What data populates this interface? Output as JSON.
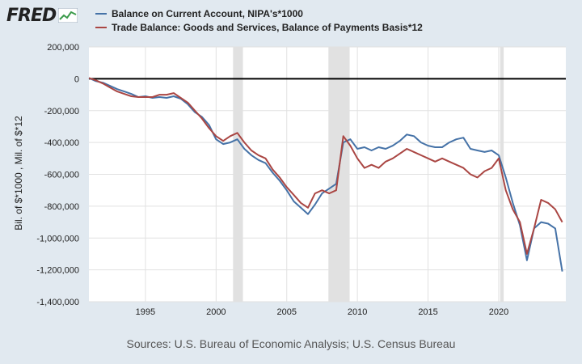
{
  "logo": {
    "text": "FRED"
  },
  "source_text": "Sources: U.S. Bureau of Economic Analysis; U.S. Census Bureau",
  "chart_data": {
    "type": "line",
    "title": "",
    "ylabel": "Bil. of $*1000 , Mil. of $*12",
    "xlabel": "",
    "xlim": [
      1991.0,
      2024.75
    ],
    "ylim": [
      -1400000,
      200000
    ],
    "ytick_values": [
      200000,
      0,
      -200000,
      -400000,
      -600000,
      -800000,
      -1000000,
      -1200000,
      -1400000
    ],
    "ytick_labels": [
      "200,000",
      "0",
      "-200,000",
      "-400,000",
      "-600,000",
      "-800,000",
      "-1,000,000",
      "-1,200,000",
      "-1,400,000"
    ],
    "xtick_values": [
      1995,
      2000,
      2005,
      2010,
      2015,
      2020
    ],
    "xtick_labels": [
      "1995",
      "2000",
      "2005",
      "2010",
      "2015",
      "2020"
    ],
    "grid": true,
    "legend_position": "top",
    "zero_line": true,
    "recessions": [
      [
        2001.2,
        2001.9
      ],
      [
        2007.95,
        2009.45
      ],
      [
        2020.1,
        2020.35
      ]
    ],
    "colors": {
      "series_1": "#4572a7",
      "series_2": "#aa4643",
      "recession": "#e1e1e1",
      "grid": "#e1e1e1",
      "background": "#e1e9f0",
      "plot_background": "#ffffff"
    },
    "series": [
      {
        "name": "Balance on Current Account, NIPA's*1000",
        "points": [
          [
            1991.0,
            5000
          ],
          [
            1991.5,
            -15000
          ],
          [
            1992.0,
            -25000
          ],
          [
            1992.5,
            -45000
          ],
          [
            1993.0,
            -65000
          ],
          [
            1993.5,
            -80000
          ],
          [
            1994.0,
            -95000
          ],
          [
            1994.5,
            -115000
          ],
          [
            1995.0,
            -110000
          ],
          [
            1995.5,
            -120000
          ],
          [
            1996.0,
            -115000
          ],
          [
            1996.5,
            -120000
          ],
          [
            1997.0,
            -110000
          ],
          [
            1997.5,
            -125000
          ],
          [
            1998.0,
            -160000
          ],
          [
            1998.5,
            -210000
          ],
          [
            1999.0,
            -240000
          ],
          [
            1999.5,
            -290000
          ],
          [
            2000.0,
            -380000
          ],
          [
            2000.5,
            -410000
          ],
          [
            2001.0,
            -400000
          ],
          [
            2001.5,
            -380000
          ],
          [
            2002.0,
            -440000
          ],
          [
            2002.5,
            -480000
          ],
          [
            2003.0,
            -510000
          ],
          [
            2003.5,
            -530000
          ],
          [
            2004.0,
            -590000
          ],
          [
            2004.5,
            -640000
          ],
          [
            2005.0,
            -700000
          ],
          [
            2005.5,
            -770000
          ],
          [
            2006.0,
            -810000
          ],
          [
            2006.5,
            -850000
          ],
          [
            2007.0,
            -790000
          ],
          [
            2007.5,
            -720000
          ],
          [
            2008.0,
            -690000
          ],
          [
            2008.5,
            -660000
          ],
          [
            2009.0,
            -400000
          ],
          [
            2009.5,
            -380000
          ],
          [
            2010.0,
            -440000
          ],
          [
            2010.5,
            -430000
          ],
          [
            2011.0,
            -450000
          ],
          [
            2011.5,
            -430000
          ],
          [
            2012.0,
            -440000
          ],
          [
            2012.5,
            -420000
          ],
          [
            2013.0,
            -390000
          ],
          [
            2013.5,
            -350000
          ],
          [
            2014.0,
            -360000
          ],
          [
            2014.5,
            -400000
          ],
          [
            2015.0,
            -420000
          ],
          [
            2015.5,
            -430000
          ],
          [
            2016.0,
            -430000
          ],
          [
            2016.5,
            -400000
          ],
          [
            2017.0,
            -380000
          ],
          [
            2017.5,
            -370000
          ],
          [
            2018.0,
            -440000
          ],
          [
            2018.5,
            -450000
          ],
          [
            2019.0,
            -460000
          ],
          [
            2019.5,
            -450000
          ],
          [
            2020.0,
            -480000
          ],
          [
            2020.5,
            -620000
          ],
          [
            2021.0,
            -780000
          ],
          [
            2021.5,
            -920000
          ],
          [
            2022.0,
            -1140000
          ],
          [
            2022.5,
            -940000
          ],
          [
            2023.0,
            -900000
          ],
          [
            2023.5,
            -910000
          ],
          [
            2024.0,
            -940000
          ],
          [
            2024.5,
            -1210000
          ]
        ]
      },
      {
        "name": "Trade Balance: Goods and Services, Balance of Payments Basis*12",
        "points": [
          [
            1991.0,
            5000
          ],
          [
            1991.5,
            -10000
          ],
          [
            1992.0,
            -30000
          ],
          [
            1992.5,
            -55000
          ],
          [
            1993.0,
            -80000
          ],
          [
            1993.5,
            -95000
          ],
          [
            1994.0,
            -110000
          ],
          [
            1994.5,
            -115000
          ],
          [
            1995.0,
            -115000
          ],
          [
            1995.5,
            -115000
          ],
          [
            1996.0,
            -100000
          ],
          [
            1996.5,
            -100000
          ],
          [
            1997.0,
            -90000
          ],
          [
            1997.5,
            -120000
          ],
          [
            1998.0,
            -150000
          ],
          [
            1998.5,
            -200000
          ],
          [
            1999.0,
            -250000
          ],
          [
            1999.5,
            -310000
          ],
          [
            2000.0,
            -360000
          ],
          [
            2000.5,
            -390000
          ],
          [
            2001.0,
            -360000
          ],
          [
            2001.5,
            -340000
          ],
          [
            2002.0,
            -400000
          ],
          [
            2002.5,
            -450000
          ],
          [
            2003.0,
            -480000
          ],
          [
            2003.5,
            -500000
          ],
          [
            2004.0,
            -570000
          ],
          [
            2004.5,
            -620000
          ],
          [
            2005.0,
            -680000
          ],
          [
            2005.5,
            -730000
          ],
          [
            2006.0,
            -780000
          ],
          [
            2006.5,
            -810000
          ],
          [
            2007.0,
            -720000
          ],
          [
            2007.5,
            -700000
          ],
          [
            2008.0,
            -720000
          ],
          [
            2008.5,
            -700000
          ],
          [
            2009.0,
            -360000
          ],
          [
            2009.5,
            -420000
          ],
          [
            2010.0,
            -500000
          ],
          [
            2010.5,
            -560000
          ],
          [
            2011.0,
            -540000
          ],
          [
            2011.5,
            -560000
          ],
          [
            2012.0,
            -520000
          ],
          [
            2012.5,
            -500000
          ],
          [
            2013.0,
            -470000
          ],
          [
            2013.5,
            -440000
          ],
          [
            2014.0,
            -460000
          ],
          [
            2014.5,
            -480000
          ],
          [
            2015.0,
            -500000
          ],
          [
            2015.5,
            -520000
          ],
          [
            2016.0,
            -500000
          ],
          [
            2016.5,
            -520000
          ],
          [
            2017.0,
            -540000
          ],
          [
            2017.5,
            -560000
          ],
          [
            2018.0,
            -600000
          ],
          [
            2018.5,
            -620000
          ],
          [
            2019.0,
            -580000
          ],
          [
            2019.5,
            -560000
          ],
          [
            2020.0,
            -500000
          ],
          [
            2020.5,
            -700000
          ],
          [
            2021.0,
            -820000
          ],
          [
            2021.5,
            -900000
          ],
          [
            2022.0,
            -1100000
          ],
          [
            2022.5,
            -940000
          ],
          [
            2023.0,
            -760000
          ],
          [
            2023.5,
            -780000
          ],
          [
            2024.0,
            -820000
          ],
          [
            2024.5,
            -900000
          ]
        ]
      }
    ]
  }
}
